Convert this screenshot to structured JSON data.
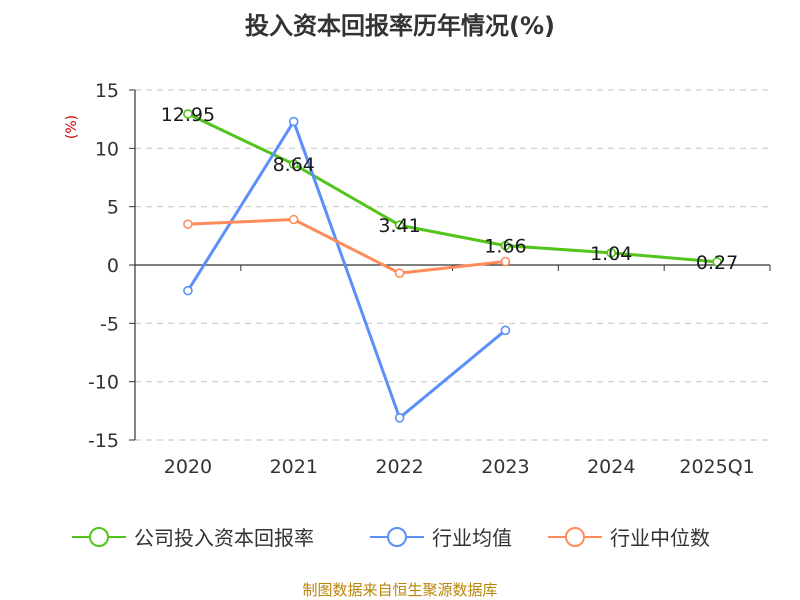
{
  "chart_data": {
    "type": "line",
    "title": "投入资本回报率历年情况(%)",
    "ylabel": "(%)",
    "categories": [
      "2020",
      "2021",
      "2022",
      "2023",
      "2024",
      "2025Q1"
    ],
    "ylim": [
      -15,
      15
    ],
    "yticks": [
      15,
      10,
      5,
      0,
      -5,
      -10,
      -15
    ],
    "grid": true,
    "legend_position": "bottom",
    "series": [
      {
        "name": "公司投入资本回报率",
        "color": "#52c41a",
        "values": [
          12.95,
          8.64,
          3.41,
          1.66,
          1.04,
          0.27
        ],
        "labels": [
          "12.95",
          "8.64",
          "3.41",
          "1.66",
          "1.04",
          "0.27"
        ]
      },
      {
        "name": "行业均值",
        "color": "#5b8ff9",
        "values": [
          -2.2,
          12.3,
          -13.1,
          -5.6,
          null,
          null
        ]
      },
      {
        "name": "行业中位数",
        "color": "#ff8c5a",
        "values": [
          3.5,
          3.9,
          -0.7,
          0.3,
          null,
          null
        ]
      }
    ],
    "source": "制图数据来自恒生聚源数据库",
    "colors": {
      "axis": "#333333",
      "grid": "#cccccc",
      "ylabel": "#cc0000",
      "source": "#b8860b"
    }
  }
}
